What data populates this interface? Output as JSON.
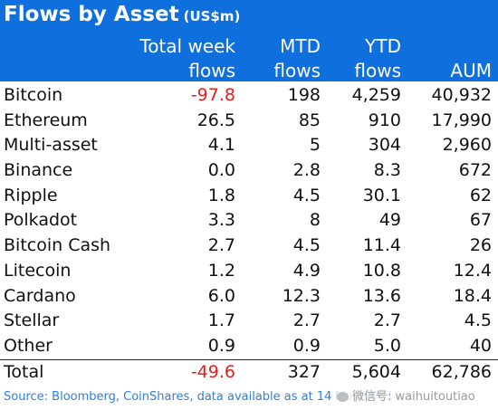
{
  "chart_data": {
    "type": "table",
    "title": "Flows by Asset",
    "unit": "(US$m)",
    "columns": [
      {
        "line1": "Total week",
        "line2": "flows"
      },
      {
        "line1": "MTD",
        "line2": "flows"
      },
      {
        "line1": "YTD",
        "line2": "flows"
      },
      {
        "line1": "",
        "line2": "AUM"
      }
    ],
    "rows": [
      {
        "asset": "Bitcoin",
        "values": [
          "-97.8",
          "198",
          "4,259",
          "40,932"
        ]
      },
      {
        "asset": "Ethereum",
        "values": [
          "26.5",
          "85",
          "910",
          "17,990"
        ]
      },
      {
        "asset": "Multi-asset",
        "values": [
          "4.1",
          "5",
          "304",
          "2,960"
        ]
      },
      {
        "asset": "Binance",
        "values": [
          "0.0",
          "2.8",
          "8.3",
          "672"
        ]
      },
      {
        "asset": "Ripple",
        "values": [
          "1.8",
          "4.5",
          "30.1",
          "62"
        ]
      },
      {
        "asset": "Polkadot",
        "values": [
          "3.3",
          "8",
          "49",
          "67"
        ]
      },
      {
        "asset": "Bitcoin Cash",
        "values": [
          "2.7",
          "4.5",
          "11.4",
          "26"
        ]
      },
      {
        "asset": "Litecoin",
        "values": [
          "1.2",
          "4.9",
          "10.8",
          "12.4"
        ]
      },
      {
        "asset": "Cardano",
        "values": [
          "6.0",
          "12.3",
          "13.6",
          "18.4"
        ]
      },
      {
        "asset": "Stellar",
        "values": [
          "1.7",
          "2.7",
          "2.7",
          "4.5"
        ]
      },
      {
        "asset": "Other",
        "values": [
          "0.9",
          "0.9",
          "5.0",
          "40"
        ]
      }
    ],
    "total": {
      "asset": "Total",
      "values": [
        "-49.6",
        "327",
        "5,604",
        "62,786"
      ]
    },
    "source": "Source: Bloomberg, CoinShares, data available as at 14 May 2021"
  },
  "watermark": "微信号: waihuitoutiao",
  "colors": {
    "header_bg": "#0f6fdc",
    "header_text": "#ffffff",
    "negative": "#e02020",
    "source_text": "#2f7fdc"
  }
}
